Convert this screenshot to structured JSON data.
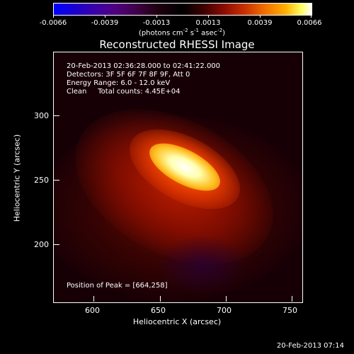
{
  "colorbar": {
    "tick_labels": [
      "-0.0066",
      "-0.0039",
      "-0.0013",
      "0.0013",
      "0.0039",
      "0.0066"
    ],
    "units_main": "(photons cm",
    "units_exp1": "-2",
    "units_mid": " s",
    "units_exp2": "-1",
    "units_end": " asec",
    "units_exp3": "-2",
    "units_close": ")"
  },
  "title": "Reconstructed RHESSI Image",
  "info": {
    "time_range": "20-Feb-2013 02:36:28.000 to 02:41:22.000",
    "detectors": "Detectors: 3F 5F 6F 7F 8F 9F, Att 0",
    "energy": "Energy Range: 6.0 - 12.0 keV",
    "clean": "Clean     Total counts: 4.45E+04",
    "peak": "Position of Peak = [664,258]"
  },
  "axes": {
    "x_label": "Heliocentric X (arcsec)",
    "y_label": "Heliocentric Y (arcsec)",
    "x_ticks": [
      "600",
      "650",
      "700",
      "750"
    ],
    "y_ticks": [
      "300",
      "250",
      "200"
    ]
  },
  "footer": {
    "timestamp": "20-Feb-2013 07:14"
  }
}
